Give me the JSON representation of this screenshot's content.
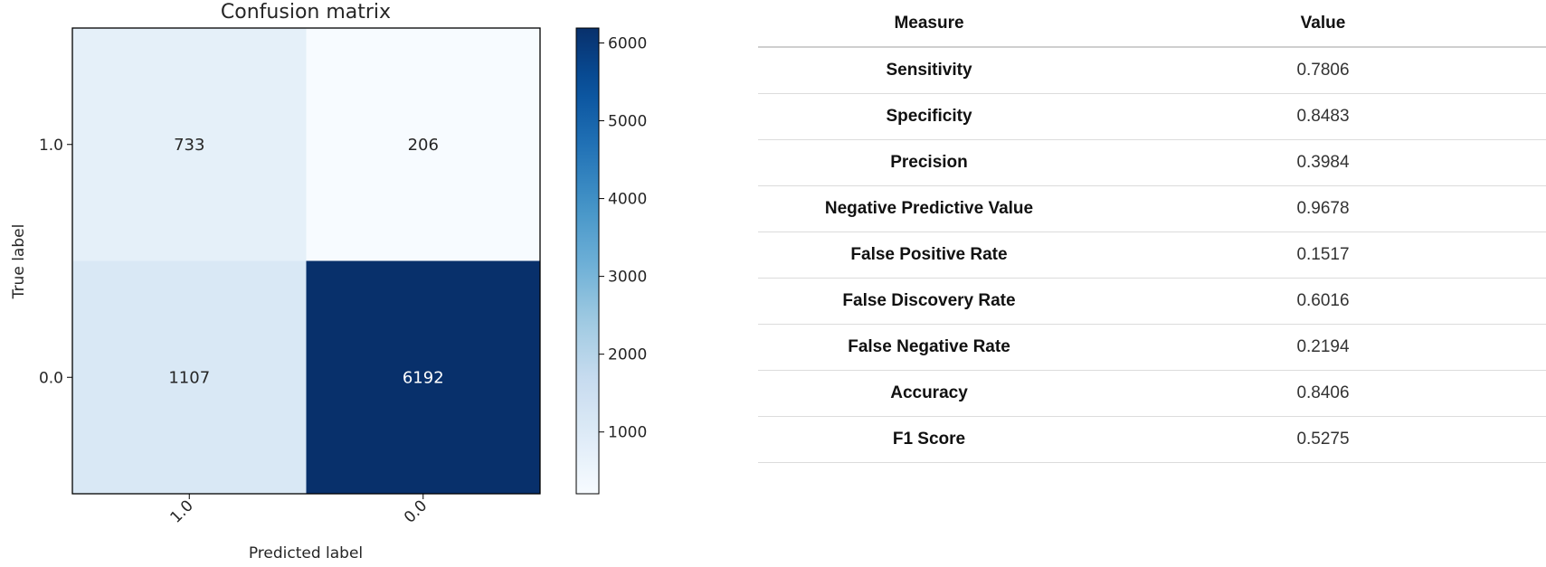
{
  "chart_data": [
    {
      "type": "heatmap",
      "title": "Confusion matrix",
      "xlabel": "Predicted label",
      "ylabel": "True label",
      "x_categories": [
        "1.0",
        "0.0"
      ],
      "y_categories": [
        "1.0",
        "0.0"
      ],
      "values": [
        [
          733,
          206
        ],
        [
          1107,
          6192
        ]
      ],
      "colormap": "Blues",
      "colorbar": {
        "min": 206,
        "max": 6192,
        "ticks": [
          1000,
          2000,
          3000,
          4000,
          5000,
          6000
        ]
      },
      "x_tick_rotation": 45,
      "grid": false
    },
    {
      "type": "table",
      "columns": [
        "Measure",
        "Value"
      ],
      "rows": [
        {
          "name": "Sensitivity",
          "value": "0.7806"
        },
        {
          "name": "Specificity",
          "value": "0.8483"
        },
        {
          "name": "Precision",
          "value": "0.3984"
        },
        {
          "name": "Negative Predictive Value",
          "value": "0.9678"
        },
        {
          "name": "False Positive Rate",
          "value": "0.1517"
        },
        {
          "name": "False Discovery Rate",
          "value": "0.6016"
        },
        {
          "name": "False Negative Rate",
          "value": "0.2194"
        },
        {
          "name": "Accuracy",
          "value": "0.8406"
        },
        {
          "name": "F1 Score",
          "value": "0.5275"
        }
      ]
    }
  ]
}
